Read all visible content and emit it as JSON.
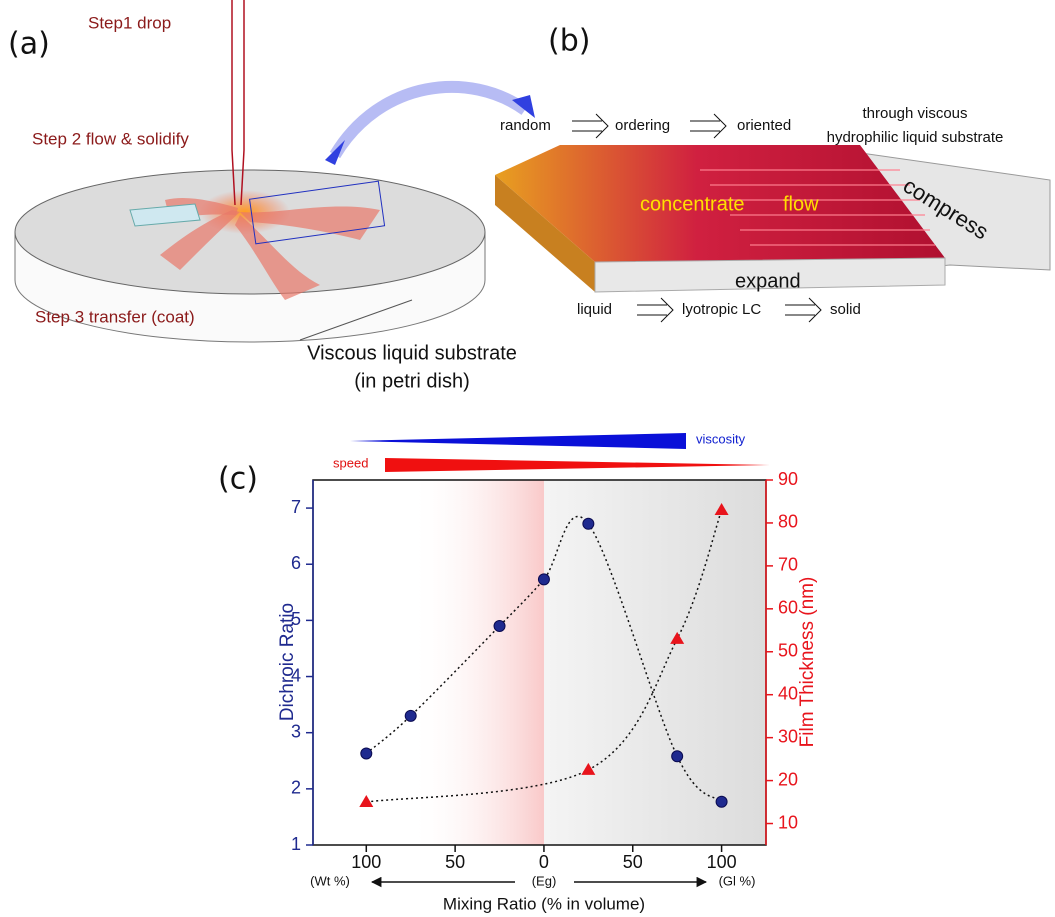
{
  "panel_a": {
    "label": "(a)",
    "step1": "Step1 drop",
    "step2": "Step 2 flow & solidify",
    "step3": "Step 3  transfer (coat)",
    "substrate": [
      "Viscous liquid substrate",
      "(in petri dish)"
    ]
  },
  "panel_b": {
    "label": "(b)",
    "order_row": [
      "random",
      "ordering",
      "oriented"
    ],
    "note": [
      "through viscous",
      "hydrophilic liquid substrate"
    ],
    "compress": "compress",
    "concentrate": "concentrate",
    "flow": "flow",
    "expand": "expand",
    "phase_row": [
      "liquid",
      "lyotropic LC",
      "solid"
    ]
  },
  "chart_data": {
    "type": "scatter",
    "label": "(c)",
    "ylabel": "Dichroic Ratio",
    "y2label": "Film Thickness (nm)",
    "xlabel": "Mixing Ratio (% in volume)",
    "x_annotations": [
      "(Wt %)",
      "(Eg)",
      "(Gl %)"
    ],
    "gradient_labels": [
      "viscosity",
      "speed"
    ],
    "xlim": [
      -130,
      125
    ],
    "xticks": [
      {
        "value": -100,
        "label": "100"
      },
      {
        "value": -50,
        "label": "50"
      },
      0,
      50,
      100
    ],
    "ylim": [
      1,
      7.5
    ],
    "yticks": [
      1,
      2,
      3,
      4,
      5,
      6,
      7
    ],
    "y2lim": [
      5,
      90
    ],
    "y2ticks": [
      10,
      20,
      30,
      40,
      50,
      60,
      70,
      80,
      90
    ],
    "series": [
      {
        "color": "#1f2a8f",
        "marker": "circle",
        "x": [
          -100,
          -75,
          -25,
          0,
          25,
          75,
          100
        ],
        "values": [
          2.63,
          3.3,
          4.9,
          5.73,
          6.72,
          2.58,
          1.77
        ]
      },
      {
        "color": "#e8141c",
        "marker": "triangle",
        "axis": "y2",
        "x": [
          -100,
          25,
          75,
          100
        ],
        "values": [
          15,
          22.5,
          53,
          83
        ]
      }
    ]
  }
}
